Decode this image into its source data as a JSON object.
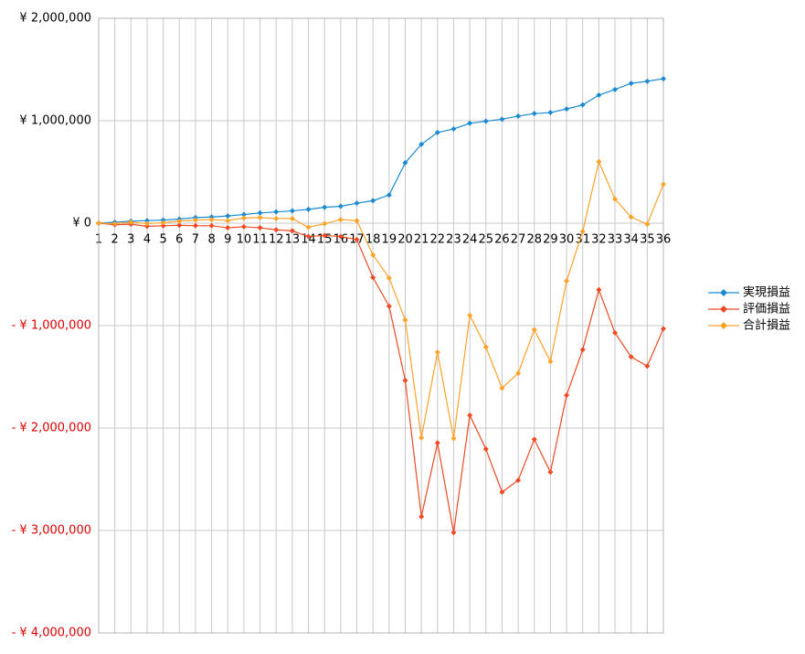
{
  "chart_data": {
    "type": "line",
    "categories": [
      "1",
      "2",
      "3",
      "4",
      "5",
      "6",
      "7",
      "8",
      "9",
      "10",
      "11",
      "12",
      "13",
      "14",
      "15",
      "16",
      "17",
      "18",
      "19",
      "20",
      "21",
      "22",
      "23",
      "24",
      "25",
      "26",
      "27",
      "28",
      "29",
      "30",
      "31",
      "32",
      "33",
      "34",
      "35",
      "36"
    ],
    "series": [
      {
        "name": "実現損益",
        "color": "#1b8ad0",
        "values": [
          0,
          10000,
          20000,
          25000,
          30000,
          40000,
          55000,
          60000,
          70000,
          85000,
          100000,
          110000,
          120000,
          135000,
          155000,
          165000,
          195000,
          220000,
          275000,
          590000,
          770000,
          885000,
          920000,
          975000,
          995000,
          1015000,
          1045000,
          1070000,
          1080000,
          1115000,
          1155000,
          1250000,
          1305000,
          1365000,
          1385000,
          1410000
        ]
      },
      {
        "name": "評価損益",
        "color": "#ef4a24",
        "values": [
          0,
          -15000,
          -10000,
          -30000,
          -25000,
          -20000,
          -25000,
          -25000,
          -45000,
          -35000,
          -45000,
          -65000,
          -75000,
          -130000,
          -120000,
          -130000,
          -160000,
          -530000,
          -810000,
          -1535000,
          -2865000,
          -2145000,
          -3020000,
          -1875000,
          -2205000,
          -2625000,
          -2510000,
          -2110000,
          -2430000,
          -1680000,
          -1235000,
          -650000,
          -1070000,
          -1305000,
          -1395000,
          -1030000
        ]
      },
      {
        "name": "合計損益",
        "color": "#ffa228",
        "values": [
          0,
          -5000,
          10000,
          -5000,
          5000,
          20000,
          30000,
          35000,
          25000,
          50000,
          55000,
          45000,
          45000,
          -40000,
          -5000,
          35000,
          25000,
          -310000,
          -535000,
          -945000,
          -2095000,
          -1260000,
          -2100000,
          -900000,
          -1210000,
          -1610000,
          -1465000,
          -1040000,
          -1350000,
          -565000,
          -80000,
          600000,
          235000,
          60000,
          -10000,
          380000
        ]
      }
    ],
    "ylim": [
      -4000000,
      2000000
    ],
    "yticks": [
      {
        "value": 2000000,
        "label": "¥ 2,000,000"
      },
      {
        "value": 1000000,
        "label": "¥ 1,000,000"
      },
      {
        "value": 0,
        "label": "¥ 0"
      },
      {
        "value": -1000000,
        "label": "- ¥ 1,000,000"
      },
      {
        "value": -2000000,
        "label": "- ¥ 2,000,000"
      },
      {
        "value": -3000000,
        "label": "- ¥ 3,000,000"
      },
      {
        "value": -4000000,
        "label": "- ¥ 4,000,000"
      }
    ],
    "negative_label_color": "#e00000",
    "grid": true,
    "legend": "right"
  }
}
